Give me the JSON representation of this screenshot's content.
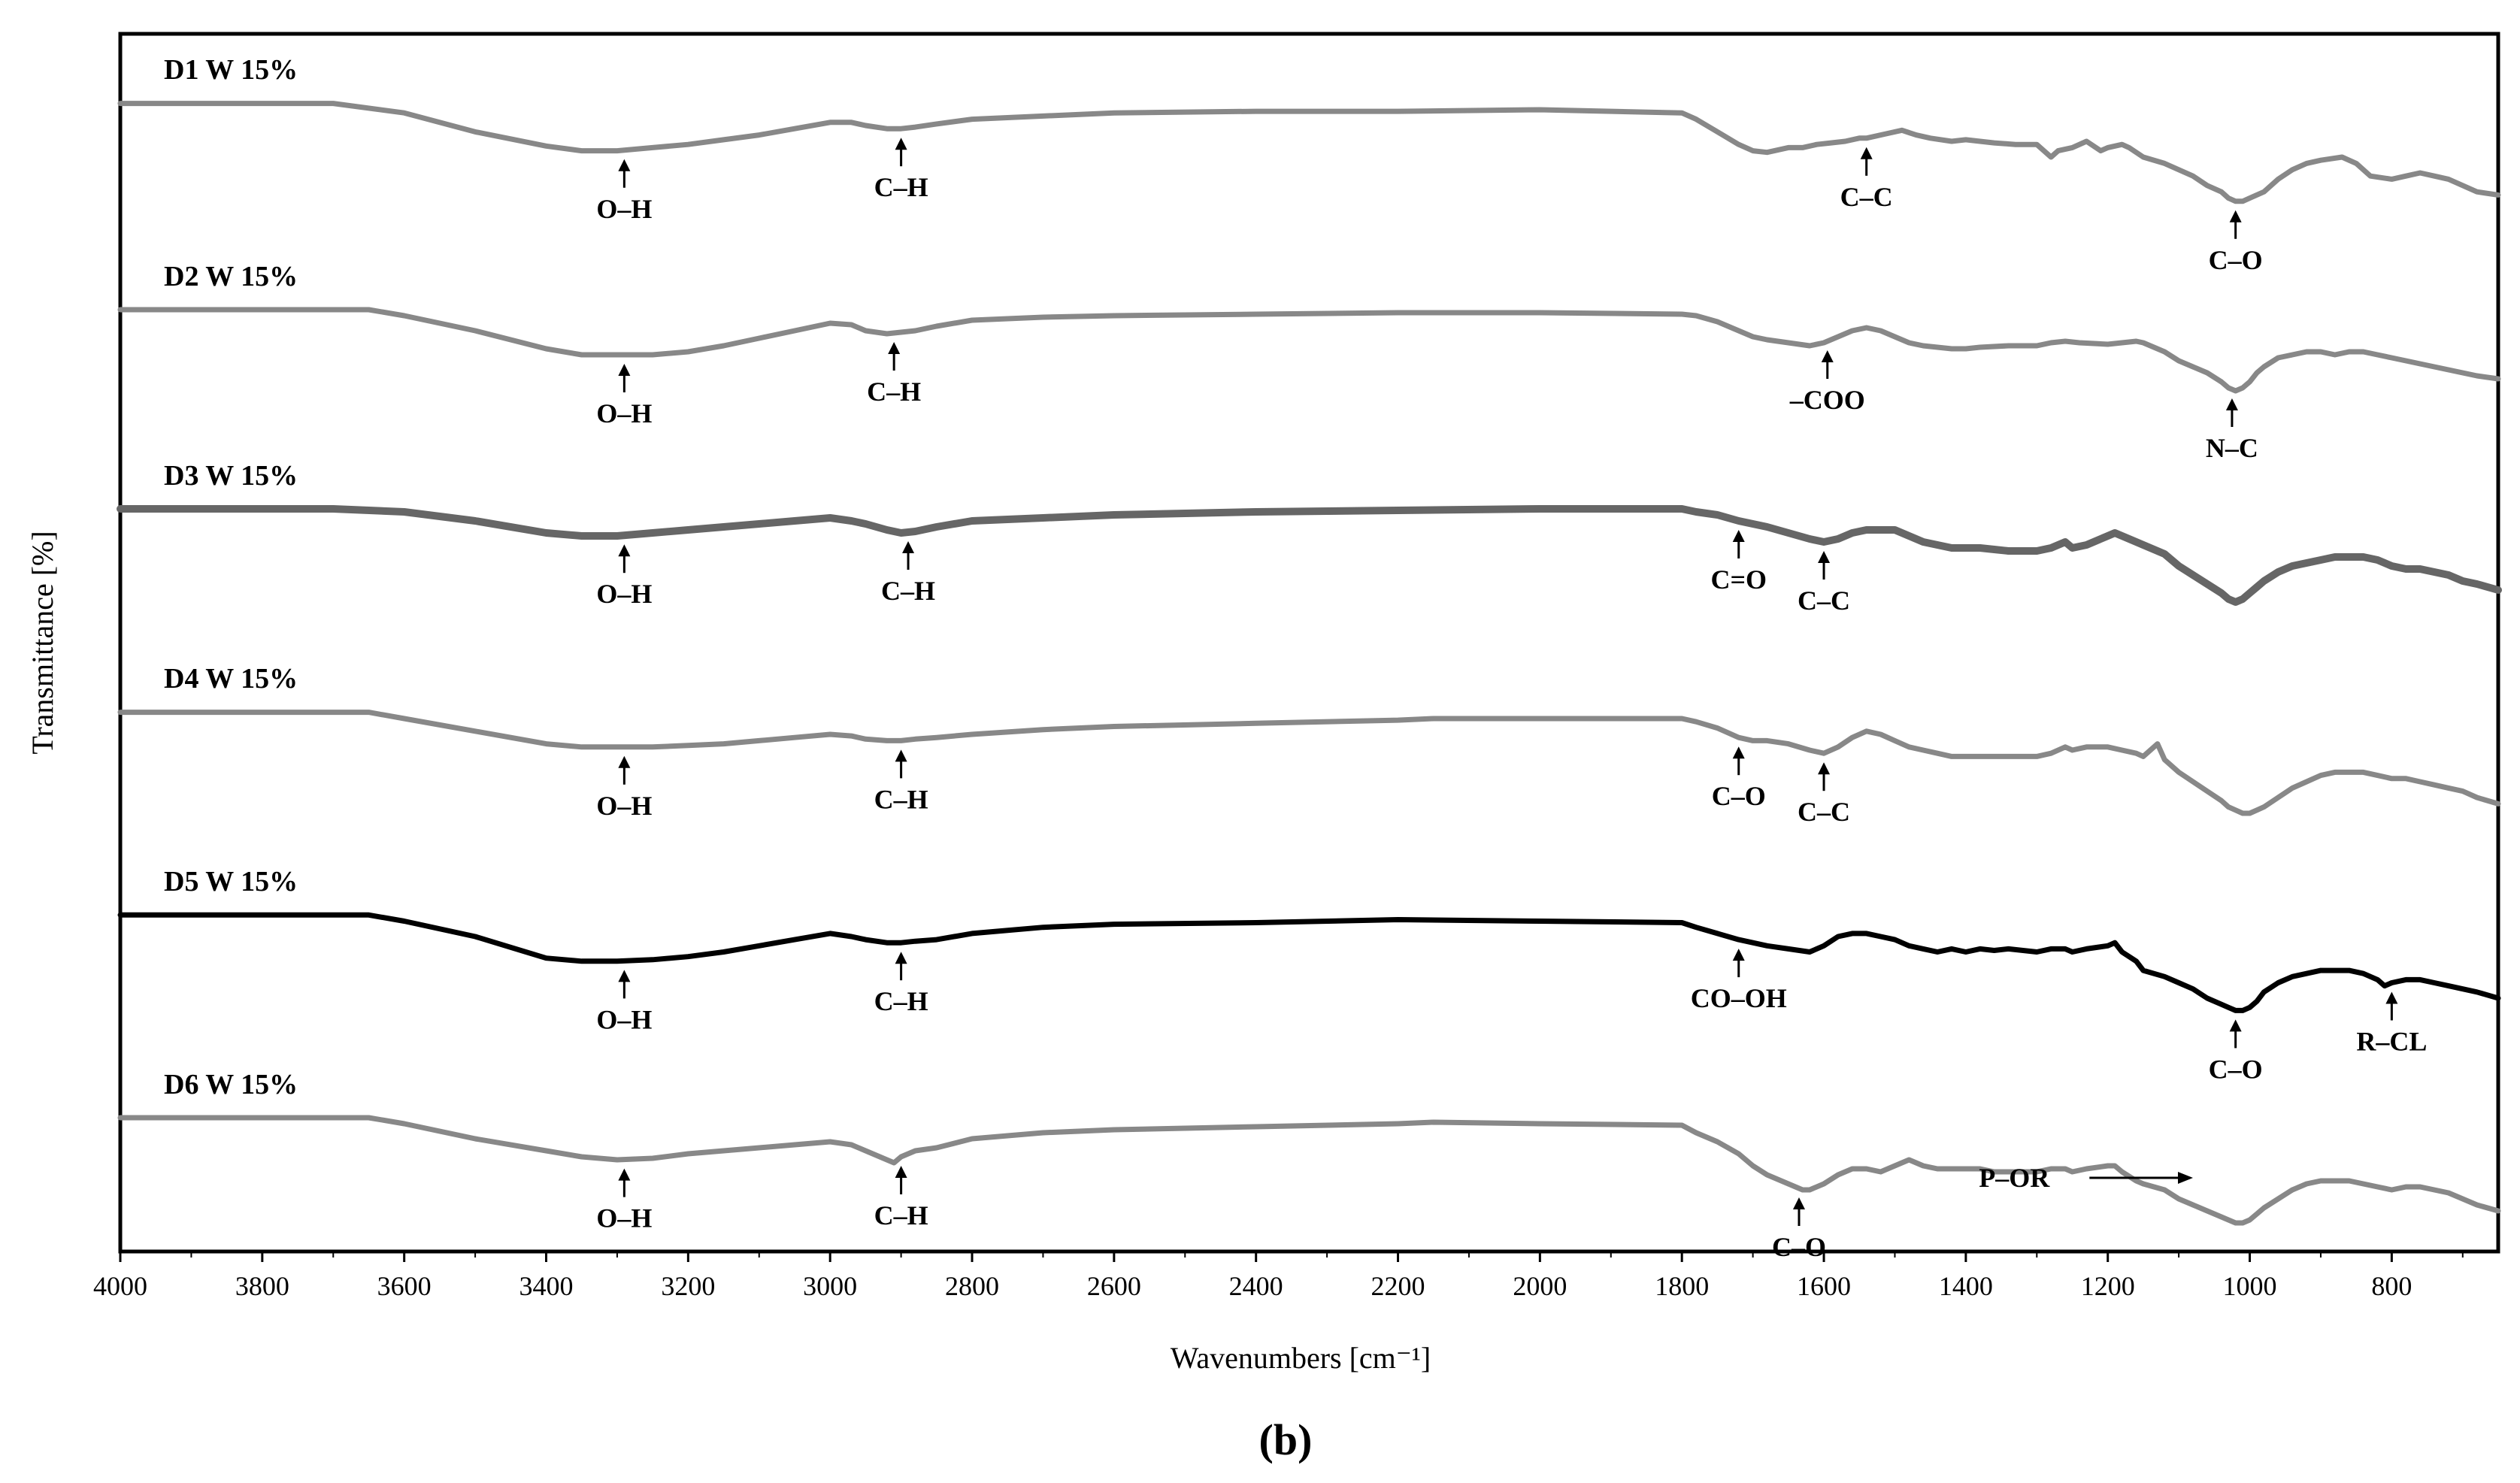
{
  "panel_label": "(b)",
  "chart_data": {
    "type": "line",
    "xlabel": "Wavenumbers [cm⁻¹]",
    "ylabel": "Transmittance [%]",
    "xlim": [
      4000,
      650
    ],
    "x_reversed": true,
    "x_ticks": [
      4000,
      3800,
      3600,
      3400,
      3200,
      3000,
      2800,
      2600,
      2400,
      2200,
      2000,
      1800,
      1600,
      1400,
      1200,
      1000,
      800
    ],
    "grid": false,
    "legend": "none",
    "y_units": "relative (stacked, offset per series)",
    "series": [
      {
        "name": "D1 W 15%",
        "color": "#888888",
        "x": [
          4000,
          3900,
          3800,
          3700,
          3600,
          3500,
          3400,
          3350,
          3300,
          3250,
          3200,
          3150,
          3100,
          3050,
          3000,
          2970,
          2950,
          2920,
          2900,
          2880,
          2850,
          2800,
          2700,
          2600,
          2400,
          2200,
          2000,
          1800,
          1780,
          1750,
          1720,
          1700,
          1680,
          1650,
          1640,
          1630,
          1610,
          1590,
          1570,
          1550,
          1540,
          1510,
          1490,
          1470,
          1450,
          1420,
          1400,
          1380,
          1360,
          1330,
          1300,
          1280,
          1270,
          1250,
          1230,
          1210,
          1200,
          1180,
          1170,
          1150,
          1120,
          1100,
          1080,
          1060,
          1040,
          1030,
          1020,
          1010,
          1000,
          980,
          960,
          940,
          920,
          900,
          870,
          850,
          830,
          800,
          780,
          760,
          740,
          720,
          700,
          680,
          650
        ],
        "y": [
          94,
          94,
          94,
          94,
          88,
          76,
          67,
          64,
          64,
          66,
          68,
          71,
          74,
          78,
          82,
          82,
          80,
          78,
          78,
          79,
          81,
          84,
          86,
          88,
          89,
          89,
          90,
          88,
          84,
          76,
          68,
          64,
          63,
          66,
          66,
          66,
          68,
          69,
          70,
          72,
          72,
          75,
          77,
          74,
          72,
          70,
          71,
          70,
          69,
          68,
          68,
          60,
          64,
          66,
          70,
          64,
          66,
          68,
          66,
          60,
          56,
          52,
          48,
          42,
          38,
          34,
          32,
          32,
          34,
          38,
          46,
          52,
          56,
          58,
          60,
          56,
          48,
          46,
          48,
          50,
          48,
          46,
          42,
          38,
          36
        ]
      },
      {
        "name": "D2 W 15%",
        "color": "#888888",
        "x": [
          4000,
          3900,
          3800,
          3700,
          3650,
          3600,
          3500,
          3400,
          3350,
          3300,
          3250,
          3200,
          3150,
          3100,
          3050,
          3000,
          2970,
          2950,
          2920,
          2900,
          2880,
          2850,
          2800,
          2700,
          2600,
          2400,
          2200,
          2000,
          1800,
          1780,
          1750,
          1720,
          1700,
          1680,
          1650,
          1620,
          1600,
          1580,
          1560,
          1540,
          1520,
          1500,
          1480,
          1460,
          1440,
          1420,
          1400,
          1380,
          1340,
          1300,
          1280,
          1260,
          1240,
          1200,
          1180,
          1160,
          1150,
          1120,
          1100,
          1080,
          1060,
          1040,
          1030,
          1020,
          1010,
          1000,
          990,
          980,
          960,
          940,
          920,
          900,
          880,
          860,
          840,
          820,
          800,
          780,
          760,
          740,
          720,
          700,
          680,
          650
        ],
        "y": [
          94,
          94,
          94,
          94,
          94,
          90,
          80,
          68,
          64,
          64,
          64,
          66,
          70,
          75,
          80,
          85,
          84,
          80,
          78,
          79,
          80,
          83,
          87,
          89,
          90,
          91,
          92,
          92,
          91,
          90,
          86,
          80,
          76,
          74,
          72,
          70,
          72,
          76,
          80,
          82,
          80,
          76,
          72,
          70,
          69,
          68,
          68,
          69,
          70,
          70,
          72,
          73,
          72,
          71,
          72,
          73,
          72,
          66,
          60,
          56,
          52,
          46,
          42,
          40,
          42,
          46,
          52,
          56,
          62,
          64,
          66,
          66,
          64,
          66,
          66,
          64,
          62,
          60,
          58,
          56,
          54,
          52,
          50,
          48
        ]
      },
      {
        "name": "D3 W 15%",
        "color": "#666666",
        "x": [
          4000,
          3900,
          3800,
          3700,
          3600,
          3500,
          3400,
          3350,
          3300,
          3250,
          3200,
          3150,
          3100,
          3050,
          3000,
          2970,
          2950,
          2920,
          2900,
          2880,
          2850,
          2800,
          2700,
          2600,
          2400,
          2200,
          2000,
          1800,
          1780,
          1750,
          1720,
          1700,
          1680,
          1650,
          1620,
          1600,
          1580,
          1560,
          1540,
          1520,
          1500,
          1480,
          1460,
          1440,
          1420,
          1400,
          1380,
          1360,
          1340,
          1300,
          1280,
          1260,
          1250,
          1230,
          1200,
          1190,
          1180,
          1160,
          1150,
          1120,
          1100,
          1080,
          1060,
          1040,
          1030,
          1020,
          1010,
          1000,
          990,
          980,
          960,
          940,
          920,
          900,
          880,
          860,
          840,
          820,
          800,
          780,
          760,
          740,
          720,
          700,
          680,
          650
        ],
        "y": [
          94,
          94,
          94,
          94,
          92,
          86,
          78,
          76,
          76,
          78,
          80,
          82,
          84,
          86,
          88,
          86,
          84,
          80,
          78,
          79,
          82,
          86,
          88,
          90,
          92,
          93,
          94,
          94,
          92,
          90,
          86,
          84,
          82,
          78,
          74,
          72,
          74,
          78,
          80,
          80,
          80,
          76,
          72,
          70,
          68,
          68,
          68,
          67,
          66,
          66,
          68,
          72,
          68,
          70,
          76,
          78,
          76,
          72,
          70,
          64,
          56,
          50,
          44,
          38,
          34,
          32,
          34,
          38,
          42,
          46,
          52,
          56,
          58,
          60,
          62,
          62,
          62,
          60,
          56,
          54,
          54,
          52,
          50,
          46,
          44,
          40
        ]
      },
      {
        "name": "D4 W 15%",
        "color": "#888888",
        "x": [
          4000,
          3900,
          3800,
          3700,
          3650,
          3600,
          3500,
          3400,
          3350,
          3300,
          3250,
          3200,
          3150,
          3100,
          3050,
          3000,
          2970,
          2950,
          2920,
          2900,
          2880,
          2850,
          2800,
          2700,
          2600,
          2400,
          2200,
          2150,
          2000,
          1800,
          1780,
          1750,
          1720,
          1700,
          1680,
          1650,
          1620,
          1600,
          1580,
          1560,
          1540,
          1520,
          1500,
          1480,
          1460,
          1440,
          1420,
          1400,
          1380,
          1360,
          1340,
          1300,
          1280,
          1260,
          1250,
          1230,
          1200,
          1180,
          1160,
          1150,
          1130,
          1120,
          1100,
          1080,
          1060,
          1040,
          1030,
          1020,
          1010,
          1000,
          990,
          980,
          960,
          940,
          920,
          900,
          880,
          860,
          840,
          820,
          800,
          780,
          760,
          740,
          720,
          700,
          680,
          650
        ],
        "y": [
          94,
          94,
          94,
          94,
          94,
          90,
          82,
          74,
          72,
          72,
          72,
          73,
          74,
          76,
          78,
          80,
          79,
          77,
          76,
          76,
          77,
          78,
          80,
          83,
          85,
          87,
          89,
          90,
          90,
          90,
          88,
          84,
          78,
          76,
          76,
          74,
          70,
          68,
          72,
          78,
          82,
          80,
          76,
          72,
          70,
          68,
          66,
          66,
          66,
          66,
          66,
          66,
          68,
          72,
          70,
          72,
          72,
          70,
          68,
          66,
          74,
          64,
          56,
          50,
          44,
          38,
          34,
          32,
          30,
          30,
          32,
          34,
          40,
          46,
          50,
          54,
          56,
          56,
          56,
          54,
          52,
          52,
          50,
          48,
          46,
          44,
          40,
          36
        ]
      },
      {
        "name": "D5 W 15%",
        "color": "#000000",
        "x": [
          4000,
          3900,
          3800,
          3700,
          3650,
          3600,
          3500,
          3400,
          3350,
          3300,
          3250,
          3200,
          3150,
          3100,
          3050,
          3000,
          2970,
          2950,
          2920,
          2900,
          2880,
          2850,
          2800,
          2700,
          2600,
          2400,
          2200,
          2000,
          1800,
          1780,
          1750,
          1720,
          1700,
          1680,
          1650,
          1620,
          1600,
          1580,
          1560,
          1540,
          1520,
          1500,
          1480,
          1460,
          1440,
          1420,
          1400,
          1380,
          1360,
          1340,
          1300,
          1280,
          1260,
          1250,
          1230,
          1200,
          1190,
          1180,
          1160,
          1150,
          1120,
          1100,
          1080,
          1060,
          1040,
          1030,
          1020,
          1010,
          1000,
          990,
          980,
          960,
          940,
          920,
          900,
          880,
          860,
          840,
          820,
          810,
          800,
          780,
          760,
          740,
          720,
          700,
          680,
          650
        ],
        "y": [
          94,
          94,
          94,
          94,
          94,
          90,
          80,
          66,
          64,
          64,
          65,
          67,
          70,
          74,
          78,
          82,
          80,
          78,
          76,
          76,
          77,
          78,
          82,
          86,
          88,
          89,
          91,
          90,
          89,
          86,
          82,
          78,
          76,
          74,
          72,
          70,
          74,
          80,
          82,
          82,
          80,
          78,
          74,
          72,
          70,
          72,
          70,
          72,
          71,
          72,
          70,
          72,
          72,
          70,
          72,
          74,
          76,
          70,
          64,
          58,
          54,
          50,
          46,
          40,
          36,
          34,
          32,
          32,
          34,
          38,
          44,
          50,
          54,
          56,
          58,
          58,
          58,
          56,
          52,
          48,
          50,
          52,
          52,
          50,
          48,
          46,
          44,
          40
        ]
      },
      {
        "name": "D6 W 15%",
        "color": "#888888",
        "x": [
          4000,
          3900,
          3800,
          3700,
          3650,
          3600,
          3500,
          3400,
          3350,
          3300,
          3250,
          3200,
          3150,
          3100,
          3050,
          3000,
          2970,
          2950,
          2920,
          2910,
          2900,
          2880,
          2850,
          2800,
          2700,
          2600,
          2400,
          2200,
          2150,
          2000,
          1800,
          1780,
          1750,
          1720,
          1700,
          1680,
          1650,
          1630,
          1620,
          1600,
          1580,
          1560,
          1540,
          1520,
          1500,
          1480,
          1460,
          1440,
          1420,
          1400,
          1380,
          1360,
          1340,
          1300,
          1280,
          1260,
          1250,
          1230,
          1200,
          1190,
          1180,
          1160,
          1150,
          1120,
          1100,
          1080,
          1060,
          1040,
          1030,
          1020,
          1010,
          1000,
          990,
          980,
          960,
          940,
          920,
          900,
          880,
          860,
          840,
          820,
          800,
          780,
          760,
          740,
          720,
          700,
          680,
          650
        ],
        "y": [
          94,
          94,
          94,
          94,
          94,
          90,
          80,
          72,
          68,
          66,
          67,
          70,
          72,
          74,
          76,
          78,
          76,
          72,
          66,
          64,
          68,
          72,
          74,
          80,
          84,
          86,
          88,
          90,
          91,
          90,
          89,
          84,
          78,
          70,
          62,
          56,
          50,
          46,
          46,
          50,
          56,
          60,
          60,
          58,
          62,
          66,
          62,
          60,
          60,
          60,
          60,
          58,
          58,
          58,
          60,
          60,
          58,
          60,
          62,
          62,
          58,
          52,
          50,
          46,
          40,
          36,
          32,
          28,
          26,
          24,
          24,
          26,
          30,
          34,
          40,
          46,
          50,
          52,
          52,
          52,
          50,
          48,
          46,
          48,
          48,
          46,
          44,
          40,
          36,
          32
        ]
      }
    ],
    "series_label_positions": "top-left",
    "annotations": [
      {
        "series": 0,
        "x": 3290,
        "label": "O–H"
      },
      {
        "series": 0,
        "x": 2900,
        "label": "C–H"
      },
      {
        "series": 0,
        "x": 1540,
        "label": "C–C"
      },
      {
        "series": 0,
        "x": 1020,
        "label": "C–O"
      },
      {
        "series": 1,
        "x": 3290,
        "label": "O–H"
      },
      {
        "series": 1,
        "x": 2910,
        "label": "C–H"
      },
      {
        "series": 1,
        "x": 1595,
        "label": "–COO"
      },
      {
        "series": 1,
        "x": 1025,
        "label": "N–C"
      },
      {
        "series": 2,
        "x": 3290,
        "label": "O–H"
      },
      {
        "series": 2,
        "x": 2890,
        "label": "C–H"
      },
      {
        "series": 2,
        "x": 1720,
        "label": "C=O"
      },
      {
        "series": 2,
        "x": 1600,
        "label": "C–C"
      },
      {
        "series": 3,
        "x": 3290,
        "label": "O–H"
      },
      {
        "series": 3,
        "x": 2900,
        "label": "C–H"
      },
      {
        "series": 3,
        "x": 1720,
        "label": "C–O"
      },
      {
        "series": 3,
        "x": 1600,
        "label": "C–C"
      },
      {
        "series": 4,
        "x": 3290,
        "label": "O–H"
      },
      {
        "series": 4,
        "x": 2900,
        "label": "C–H"
      },
      {
        "series": 4,
        "x": 1720,
        "label": "CO–OH"
      },
      {
        "series": 4,
        "x": 1020,
        "label": "C–O"
      },
      {
        "series": 4,
        "x": 800,
        "label": "R–CL"
      },
      {
        "series": 5,
        "x": 3290,
        "label": "O–H"
      },
      {
        "series": 5,
        "x": 2900,
        "label": "C–H"
      },
      {
        "series": 5,
        "x": 1635,
        "label": "C–O"
      },
      {
        "series": 5,
        "x": 1300,
        "label": "P–OR",
        "arrow": "right",
        "arrow_to": 1080
      }
    ]
  }
}
